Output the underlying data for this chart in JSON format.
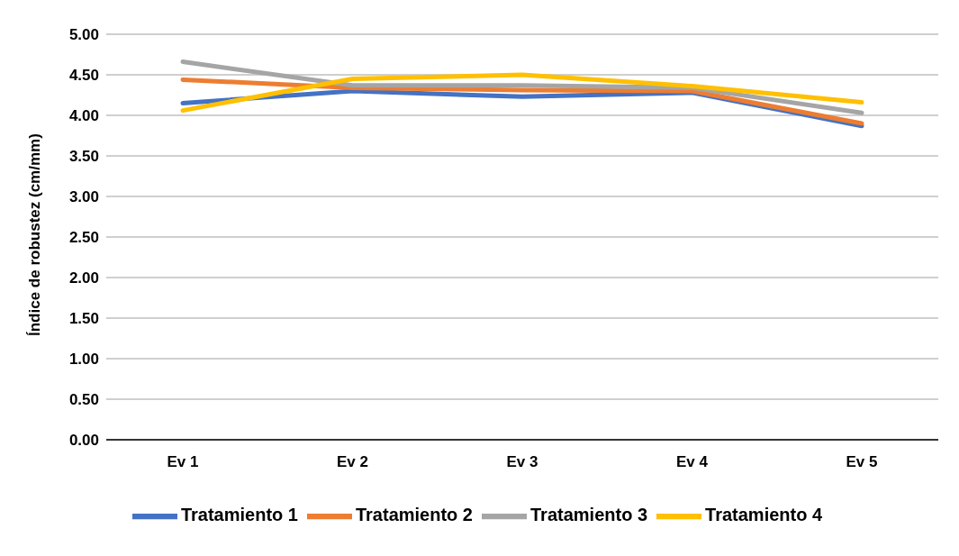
{
  "chart_data": {
    "type": "line",
    "ylabel": "Índice de robustez (cm/mm)",
    "categories": [
      "Ev 1",
      "Ev 2",
      "Ev 3",
      "Ev 4",
      "Ev 5"
    ],
    "series": [
      {
        "name": "Tratamiento 1",
        "color": "#4472c4",
        "values": [
          4.15,
          4.3,
          4.23,
          4.28,
          3.87
        ]
      },
      {
        "name": "Tratamiento 2",
        "color": "#ed7d31",
        "values": [
          4.44,
          4.34,
          4.31,
          4.3,
          3.9
        ]
      },
      {
        "name": "Tratamiento 3",
        "color": "#a5a5a5",
        "values": [
          4.66,
          4.37,
          4.37,
          4.34,
          4.03
        ]
      },
      {
        "name": "Tratamiento 4",
        "color": "#ffc000",
        "values": [
          4.06,
          4.45,
          4.5,
          4.36,
          4.16
        ]
      }
    ],
    "ylim": [
      0,
      5
    ],
    "yticks": [
      {
        "value": 0,
        "label": "0.00"
      },
      {
        "value": 0.5,
        "label": "0.50"
      },
      {
        "value": 1,
        "label": "1.00"
      },
      {
        "value": 1.5,
        "label": "1.50"
      },
      {
        "value": 2,
        "label": "2.00"
      },
      {
        "value": 2.5,
        "label": "2.50"
      },
      {
        "value": 3,
        "label": "3.00"
      },
      {
        "value": 3.5,
        "label": "3.50"
      },
      {
        "value": 4,
        "label": "4.00"
      },
      {
        "value": 4.5,
        "label": "4.50"
      },
      {
        "value": 5,
        "label": "5.00"
      }
    ],
    "grid": "y",
    "legend": "bottom",
    "marker": "none",
    "line_style": "solid"
  }
}
